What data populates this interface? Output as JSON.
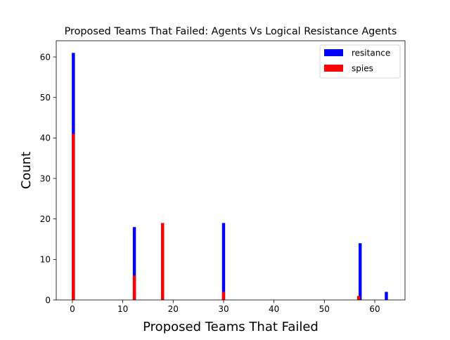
{
  "chart_data": {
    "type": "bar",
    "title": "Proposed Teams That Failed: Agents Vs Logical Resistance Agents",
    "xlabel": "Proposed Teams That Failed",
    "ylabel": "Count",
    "xlim": [
      -3.2,
      66
    ],
    "ylim": [
      0,
      64
    ],
    "xticks": [
      0,
      10,
      20,
      30,
      40,
      50,
      60
    ],
    "yticks": [
      0,
      10,
      20,
      30,
      40,
      50,
      60
    ],
    "grid": false,
    "legend_position": "top-right",
    "series": [
      {
        "name": "resitance",
        "color": "#0000ff",
        "points": [
          {
            "x": 0.2,
            "y": 61
          },
          {
            "x": 12.3,
            "y": 18
          },
          {
            "x": 30.0,
            "y": 19
          },
          {
            "x": 57.1,
            "y": 14
          },
          {
            "x": 62.3,
            "y": 2
          }
        ]
      },
      {
        "name": "spies",
        "color": "#ff0000",
        "points": [
          {
            "x": 0.2,
            "y": 41
          },
          {
            "x": 12.3,
            "y": 6
          },
          {
            "x": 17.9,
            "y": 19
          },
          {
            "x": 30.0,
            "y": 2
          },
          {
            "x": 56.8,
            "y": 1
          }
        ]
      }
    ]
  }
}
